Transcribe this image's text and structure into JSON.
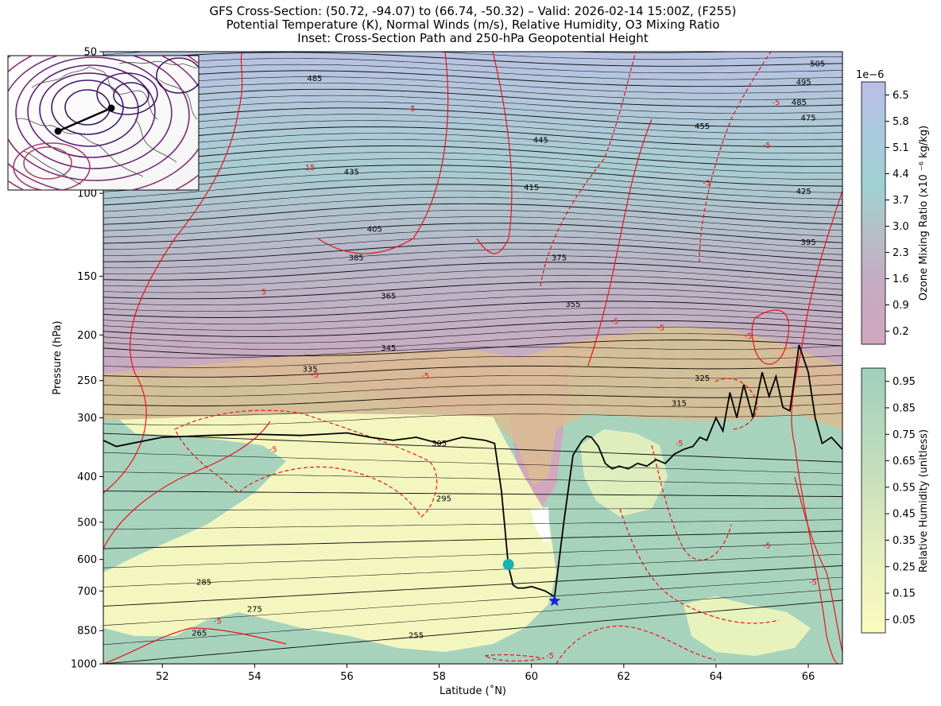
{
  "title": {
    "line1": "GFS Cross-Section: (50.72, -94.07) to (66.74, -50.32) – Valid: 2026-02-14 15:00Z, (F255)",
    "line2": "Potential Temperature (K), Normal Winds (m/s), Relative Humidity, O3 Mixing Ratio",
    "line3": "Inset: Cross-Section Path and 250-hPa Geopotential Height"
  },
  "chart_data": {
    "type": "heatmap",
    "xlabel": "Latitude (˚N)",
    "ylabel": "Pressure (hPa)",
    "xlim": [
      50.72,
      66.74
    ],
    "ylim": [
      1000,
      50
    ],
    "yscale": "log",
    "x_ticks": [
      52,
      54,
      56,
      58,
      60,
      62,
      64,
      66
    ],
    "y_ticks": [
      50,
      100,
      150,
      200,
      250,
      300,
      400,
      500,
      600,
      700,
      850,
      1000
    ],
    "theta_labels": [
      {
        "value": "485",
        "lat": 55.3,
        "p": 57
      },
      {
        "value": "445",
        "lat": 60.2,
        "p": 77
      },
      {
        "value": "435",
        "lat": 56.1,
        "p": 90
      },
      {
        "value": "415",
        "lat": 60.0,
        "p": 97
      },
      {
        "value": "405",
        "lat": 56.6,
        "p": 119
      },
      {
        "value": "385",
        "lat": 56.2,
        "p": 137
      },
      {
        "value": "375",
        "lat": 60.6,
        "p": 137
      },
      {
        "value": "365",
        "lat": 56.9,
        "p": 165
      },
      {
        "value": "355",
        "lat": 60.9,
        "p": 172
      },
      {
        "value": "345",
        "lat": 56.9,
        "p": 213
      },
      {
        "value": "335",
        "lat": 55.2,
        "p": 236
      },
      {
        "value": "325",
        "lat": 63.7,
        "p": 247
      },
      {
        "value": "315",
        "lat": 63.2,
        "p": 279
      },
      {
        "value": "305",
        "lat": 58.0,
        "p": 340
      },
      {
        "value": "295",
        "lat": 58.1,
        "p": 445
      },
      {
        "value": "285",
        "lat": 52.9,
        "p": 670
      },
      {
        "value": "275",
        "lat": 54.0,
        "p": 765
      },
      {
        "value": "265",
        "lat": 52.8,
        "p": 860
      },
      {
        "value": "255",
        "lat": 57.5,
        "p": 870
      },
      {
        "value": "455",
        "lat": 63.7,
        "p": 72
      },
      {
        "value": "475",
        "lat": 66.0,
        "p": 69
      },
      {
        "value": "485",
        "lat": 65.8,
        "p": 64
      },
      {
        "value": "495",
        "lat": 65.9,
        "p": 58
      },
      {
        "value": "505",
        "lat": 66.2,
        "p": 53
      },
      {
        "value": "425",
        "lat": 65.9,
        "p": 99
      },
      {
        "value": "395",
        "lat": 66.0,
        "p": 127
      }
    ],
    "wind_labels": [
      {
        "value": "15",
        "lat": 55.2,
        "p": 88
      },
      {
        "value": "-5",
        "lat": 57.4,
        "p": 66
      },
      {
        "value": "5",
        "lat": 54.2,
        "p": 162
      },
      {
        "value": "-5",
        "lat": 55.3,
        "p": 243
      },
      {
        "value": "-5",
        "lat": 57.7,
        "p": 244
      },
      {
        "value": "-5",
        "lat": 61.8,
        "p": 187
      },
      {
        "value": "-5",
        "lat": 62.8,
        "p": 193
      },
      {
        "value": "-5",
        "lat": 64.7,
        "p": 201
      },
      {
        "value": "-5",
        "lat": 63.8,
        "p": 95
      },
      {
        "value": "-5",
        "lat": 65.3,
        "p": 64
      },
      {
        "value": "-5",
        "lat": 65.1,
        "p": 79
      },
      {
        "value": "-5",
        "lat": 54.4,
        "p": 350
      },
      {
        "value": "-5",
        "lat": 53.2,
        "p": 810
      },
      {
        "value": "-5",
        "lat": 60.4,
        "p": 960
      },
      {
        "value": "-5",
        "lat": 63.2,
        "p": 340
      },
      {
        "value": "-5",
        "lat": 65.1,
        "p": 560
      },
      {
        "value": "-5",
        "lat": 66.1,
        "p": 670
      }
    ],
    "tropopause": {
      "lat": [
        50.72,
        51.0,
        52.0,
        53.0,
        54.0,
        55.0,
        55.5,
        56.0,
        56.5,
        57.0,
        57.5,
        58.0,
        58.5,
        59.0,
        59.2,
        59.35,
        59.5,
        59.6,
        59.7,
        59.85,
        60.0,
        60.1,
        60.3,
        60.5,
        60.7,
        60.9,
        61.1,
        61.2,
        61.3,
        61.45,
        61.6,
        61.75,
        61.9,
        62.1,
        62.3,
        62.5,
        62.7,
        62.9,
        63.1,
        63.3,
        63.5,
        63.65,
        63.8,
        64.0,
        64.15,
        64.3,
        64.45,
        64.6,
        64.8,
        65.0,
        65.15,
        65.3,
        65.45,
        65.6,
        65.8,
        66.0,
        66.15,
        66.3,
        66.5,
        66.74
      ],
      "p": [
        335,
        345,
        330,
        327,
        325,
        327,
        325,
        323,
        330,
        335,
        330,
        340,
        330,
        335,
        340,
        430,
        620,
        680,
        690,
        690,
        685,
        690,
        700,
        720,
        500,
        360,
        335,
        328,
        330,
        345,
        375,
        385,
        380,
        385,
        375,
        380,
        368,
        375,
        358,
        350,
        345,
        330,
        335,
        300,
        320,
        265,
        300,
        255,
        300,
        240,
        270,
        245,
        285,
        290,
        210,
        240,
        300,
        340,
        330,
        350
      ],
      "dashed_sections": false
    },
    "markers": [
      {
        "name": "start-marker",
        "symbol": "circle",
        "color": "#1ab0b0",
        "lat": 59.5,
        "p": 615
      },
      {
        "name": "end-marker",
        "symbol": "star",
        "color": "#1626d9",
        "lat": 60.5,
        "p": 735
      }
    ],
    "colorbars": [
      {
        "label": "Ozone Mixing Ratio (x10 ⁻⁶ kg/kg)",
        "multiplier": "1e−6",
        "ticks": [
          "6.5",
          "5.8",
          "5.1",
          "4.4",
          "3.7",
          "3.0",
          "2.3",
          "1.6",
          "0.9",
          "0.2"
        ],
        "colors": [
          "#bbbde6",
          "#b4c3e2",
          "#a9cbdd",
          "#9fd0d2",
          "#a8d0cd",
          "#b5c3c9",
          "#c0b3c3",
          "#c7a8bd",
          "#c9a6c0",
          "#d2a6bd"
        ]
      },
      {
        "label": "Relative Humidity (unitless)",
        "ticks": [
          "0.95",
          "0.85",
          "0.75",
          "0.65",
          "0.55",
          "0.45",
          "0.35",
          "0.25",
          "0.15",
          "0.05"
        ],
        "colors": [
          "#9fcfbc",
          "#a9d3bd",
          "#b3d8bd",
          "#c0dcbc",
          "#cae2bd",
          "#d5e7bd",
          "#e0ecbd",
          "#ecf2bf",
          "#f4f6bf",
          "#fbfbbe"
        ]
      }
    ],
    "inset": {
      "title": "Cross-Section Path and 250-hPa Geopotential Height",
      "path_start": "start",
      "path_end": "end"
    },
    "grid": false,
    "legend": "none"
  }
}
